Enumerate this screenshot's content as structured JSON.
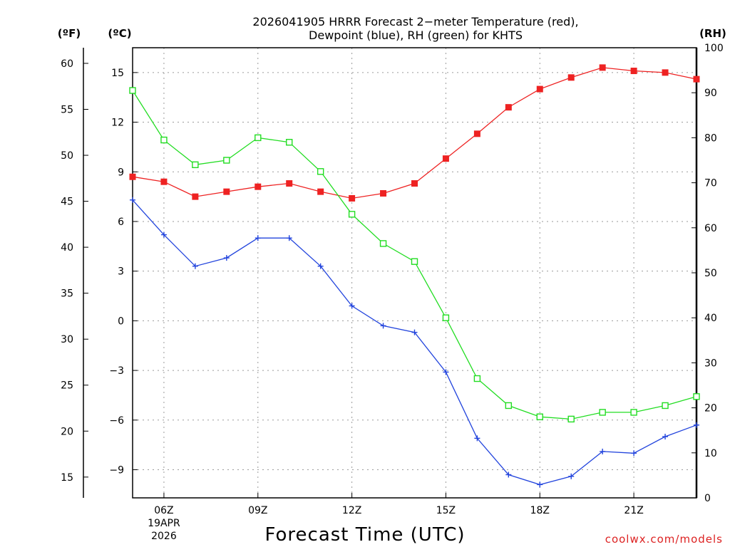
{
  "chart_data": {
    "type": "line",
    "title_line1": "2026041905 HRRR Forecast 2−meter Temperature (red),",
    "title_line2": "Dewpoint (blue), RH (green) for KHTS",
    "xlabel": "Forecast Time (UTC)",
    "credit": "coolwx.com/models",
    "units": {
      "fahrenheit": "(ºF)",
      "celsius": "(ºC)",
      "rh": "(RH)"
    },
    "hours": [
      5,
      6,
      7,
      8,
      9,
      10,
      11,
      12,
      13,
      14,
      15,
      16,
      17,
      18,
      19,
      20,
      21,
      22,
      23
    ],
    "x_ticks": [
      {
        "hour": 6,
        "label": "06Z",
        "sub1": "19APR",
        "sub2": "2026"
      },
      {
        "hour": 9,
        "label": "09Z"
      },
      {
        "hour": 12,
        "label": "12Z"
      },
      {
        "hour": 15,
        "label": "15Z"
      },
      {
        "hour": 18,
        "label": "18Z"
      },
      {
        "hour": 21,
        "label": "21Z"
      }
    ],
    "xlim": [
      5,
      23
    ],
    "celsius_axis": {
      "ylim": [
        -10.7,
        16.5
      ],
      "ticks": [
        15,
        12,
        9,
        6,
        3,
        0,
        -3,
        -6,
        -9
      ],
      "labels": [
        "15",
        "12",
        "9",
        "6",
        "3",
        "0",
        "−3",
        "−6",
        "−9"
      ]
    },
    "fahrenheit_ticks": [
      60,
      55,
      50,
      45,
      40,
      35,
      30,
      25,
      20,
      15
    ],
    "rh_axis": {
      "ylim": [
        0,
        100
      ],
      "ticks": [
        0,
        10,
        20,
        30,
        40,
        50,
        60,
        70,
        80,
        90,
        100
      ]
    },
    "series": [
      {
        "name": "Temperature",
        "unit": "C",
        "color": "#ee2222",
        "marker": "filled-square",
        "values": [
          8.7,
          8.4,
          7.5,
          7.8,
          8.1,
          8.3,
          7.8,
          7.4,
          7.7,
          8.3,
          9.8,
          11.3,
          12.9,
          14.0,
          14.7,
          15.3,
          15.1,
          15.0,
          14.6
        ]
      },
      {
        "name": "Dewpoint",
        "unit": "C",
        "color": "#2244dd",
        "marker": "plus",
        "values": [
          7.3,
          5.2,
          3.3,
          3.8,
          5.0,
          5.0,
          3.3,
          0.9,
          -0.3,
          -0.7,
          -3.1,
          -7.1,
          -9.3,
          -9.9,
          -9.4,
          -7.9,
          -8.0,
          -7.0,
          -6.3
        ]
      },
      {
        "name": "RH",
        "unit": "%",
        "color": "#22dd22",
        "marker": "open-square",
        "values": [
          90.5,
          79.5,
          74.0,
          75.0,
          80.0,
          79.0,
          72.5,
          63.0,
          56.5,
          52.5,
          40.0,
          26.5,
          20.5,
          18.0,
          17.5,
          19.0,
          19.0,
          20.5,
          22.5
        ]
      }
    ]
  }
}
